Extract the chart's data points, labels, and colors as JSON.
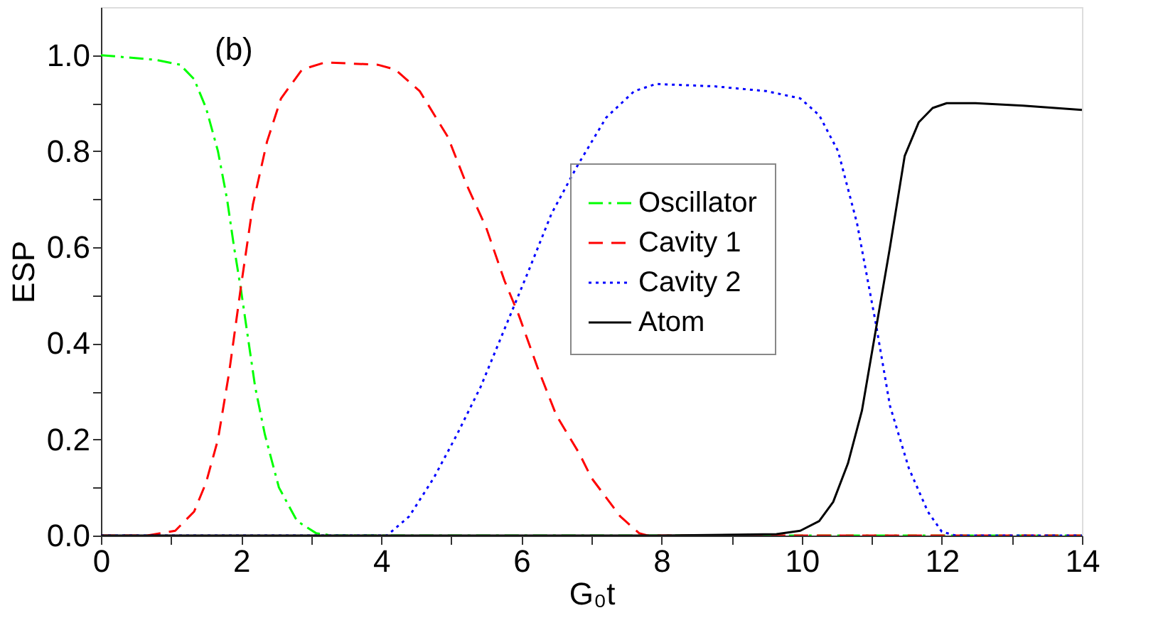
{
  "chart_data": {
    "type": "line",
    "xlabel": "G₀t",
    "ylabel": "ESP",
    "annotations": [
      "(b)"
    ],
    "xlim": [
      0,
      14
    ],
    "ylim": [
      0,
      1.1
    ],
    "xticks": [
      0,
      {
        "value": 1,
        "label": null
      },
      2,
      {
        "value": 3,
        "label": null
      },
      4,
      {
        "value": 5,
        "label": null
      },
      6,
      {
        "value": 7,
        "label": null
      },
      8,
      {
        "value": 9,
        "label": null
      },
      10,
      {
        "value": 11,
        "label": null
      },
      12,
      {
        "value": 13,
        "label": null
      },
      14
    ],
    "yticks": [
      {
        "value": 0,
        "label": "0.0"
      },
      {
        "value": 0.1,
        "label": null
      },
      0.2,
      {
        "value": 0.3,
        "label": null
      },
      0.4,
      {
        "value": 0.5,
        "label": null
      },
      0.6,
      {
        "value": 0.7,
        "label": null
      },
      0.8,
      {
        "value": 0.9,
        "label": null
      },
      {
        "value": 1,
        "label": "1.0"
      }
    ],
    "grid": false,
    "legend": "right",
    "marker": "none",
    "series": [
      {
        "name": "Oscillator",
        "color": "#00ff00",
        "line_style": "dashdot",
        "x": [
          0,
          0.79,
          1.13,
          1.33,
          1.5,
          1.67,
          1.8,
          1.9,
          2.0,
          2.1,
          2.2,
          2.34,
          2.54,
          2.8,
          3.07,
          3.3,
          14
        ],
        "values": [
          1.0,
          0.99,
          0.98,
          0.95,
          0.89,
          0.8,
          0.7,
          0.6,
          0.51,
          0.41,
          0.31,
          0.21,
          0.1,
          0.03,
          0.005,
          0,
          0
        ]
      },
      {
        "name": "Cavity 1",
        "color": "#ff0000",
        "line_style": "dashed",
        "x": [
          0,
          0.66,
          1.06,
          1.33,
          1.5,
          1.67,
          1.83,
          2.0,
          2.17,
          2.37,
          2.57,
          2.87,
          3.2,
          3.95,
          4.2,
          4.55,
          4.95,
          5.22,
          5.5,
          5.76,
          5.96,
          6.23,
          6.5,
          6.83,
          7.0,
          7.41,
          7.68,
          7.8,
          14
        ],
        "values": [
          0,
          0,
          0.01,
          0.05,
          0.11,
          0.2,
          0.34,
          0.52,
          0.69,
          0.82,
          0.91,
          0.97,
          0.985,
          0.98,
          0.97,
          0.925,
          0.83,
          0.73,
          0.64,
          0.53,
          0.46,
          0.35,
          0.25,
          0.17,
          0.12,
          0.04,
          0.005,
          0,
          0
        ]
      },
      {
        "name": "Cavity 2",
        "color": "#0000ff",
        "line_style": "dotted",
        "x": [
          0,
          4.08,
          4.4,
          4.75,
          5.08,
          5.42,
          5.76,
          6.1,
          6.43,
          6.8,
          7.21,
          7.61,
          7.92,
          8.76,
          9.5,
          9.98,
          10.25,
          10.52,
          10.79,
          11.06,
          11.26,
          11.53,
          11.8,
          12.0,
          12.2,
          14
        ],
        "values": [
          0,
          0,
          0.04,
          0.12,
          0.21,
          0.31,
          0.43,
          0.55,
          0.67,
          0.77,
          0.87,
          0.925,
          0.94,
          0.935,
          0.925,
          0.91,
          0.875,
          0.8,
          0.65,
          0.44,
          0.27,
          0.14,
          0.05,
          0.008,
          0,
          0
        ]
      },
      {
        "name": "Atom",
        "color": "#000000",
        "line_style": "solid",
        "x": [
          0,
          8,
          9.64,
          9.98,
          10.25,
          10.45,
          10.66,
          10.86,
          11.06,
          11.26,
          11.47,
          11.67,
          11.87,
          12.07,
          12.48,
          13.16,
          14
        ],
        "values": [
          0,
          0,
          0.003,
          0.01,
          0.03,
          0.07,
          0.15,
          0.26,
          0.43,
          0.6,
          0.79,
          0.86,
          0.89,
          0.9,
          0.9,
          0.895,
          0.886
        ]
      }
    ]
  }
}
